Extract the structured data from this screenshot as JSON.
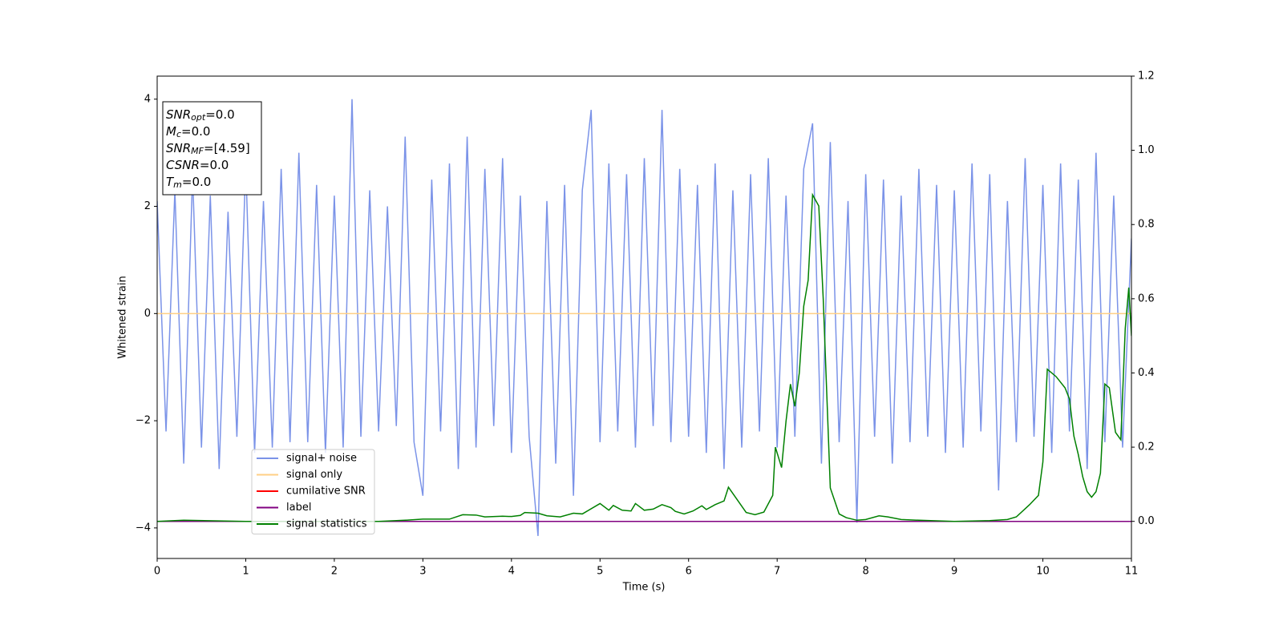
{
  "chart_data": {
    "type": "line",
    "xlabel": "Time (s)",
    "ylabel": "Whitened strain",
    "xlim": [
      0,
      11
    ],
    "xticks": [
      0,
      1,
      2,
      3,
      4,
      5,
      6,
      7,
      8,
      9,
      10,
      11
    ],
    "ylim": [
      -4.57,
      4.43
    ],
    "yticks": [
      {
        "value": -4,
        "label": "−4"
      },
      {
        "value": -2,
        "label": "−2"
      },
      0,
      2,
      4
    ],
    "y2lim": [
      -0.1,
      1.2
    ],
    "y2ticks": [
      {
        "value": 0,
        "label": "0.0"
      },
      {
        "value": 0.2,
        "label": "0.2"
      },
      {
        "value": 0.4,
        "label": "0.4"
      },
      {
        "value": 0.6,
        "label": "0.6"
      },
      {
        "value": 0.8,
        "label": "0.8"
      },
      {
        "value": 1.0,
        "label": "1.0"
      },
      {
        "value": 1.2,
        "label": "1.2"
      }
    ],
    "annotation": [
      {
        "main": "SNR",
        "sub": "opt",
        "text": "=0.0"
      },
      {
        "main": "M",
        "sub": "c",
        "text": "=0.0"
      },
      {
        "main": "SNR",
        "sub": "MF",
        "text": "=[4.59]"
      },
      {
        "main": "CSNR",
        "text": "=0.0"
      },
      {
        "main": "T",
        "sub": "m",
        "text": "=0.0"
      }
    ],
    "legend": "lower left",
    "series": [
      {
        "name": "signal+ noise",
        "color": "#7b93e8",
        "x": [
          0,
          0.1,
          0.2,
          0.3,
          0.4,
          0.5,
          0.6,
          0.7,
          0.8,
          0.9,
          1,
          1.1,
          1.2,
          1.3,
          1.4,
          1.5,
          1.6,
          1.7,
          1.8,
          1.9,
          2,
          2.1,
          2.2,
          2.3,
          2.4,
          2.5,
          2.6,
          2.7,
          2.8,
          2.9,
          3,
          3.1,
          3.2,
          3.3,
          3.4,
          3.5,
          3.6,
          3.7,
          3.8,
          3.9,
          4,
          4.1,
          4.2,
          4.3,
          4.4,
          4.5,
          4.6,
          4.7,
          4.8,
          4.9,
          5,
          5.1,
          5.2,
          5.3,
          5.4,
          5.5,
          5.6,
          5.7,
          5.8,
          5.9,
          6,
          6.1,
          6.2,
          6.3,
          6.4,
          6.5,
          6.6,
          6.7,
          6.8,
          6.9,
          7,
          7.1,
          7.2,
          7.3,
          7.4,
          7.5,
          7.6,
          7.7,
          7.8,
          7.9,
          8,
          8.1,
          8.2,
          8.3,
          8.4,
          8.5,
          8.6,
          8.7,
          8.8,
          8.9,
          9,
          9.1,
          9.2,
          9.3,
          9.4,
          9.5,
          9.6,
          9.7,
          9.8,
          9.9,
          10,
          10.1,
          10.2,
          10.3,
          10.4,
          10.5,
          10.6,
          10.7,
          10.8,
          10.9,
          11
        ],
        "values": [
          2.1,
          -2.2,
          2.3,
          -2.8,
          2.6,
          -2.5,
          2.2,
          -2.9,
          1.9,
          -2.3,
          2.8,
          -2.6,
          2.1,
          -2.5,
          2.7,
          -2.4,
          3.0,
          -2.4,
          2.4,
          -2.6,
          2.2,
          -2.5,
          4.0,
          -2.3,
          2.3,
          -2.2,
          2.0,
          -2.1,
          3.3,
          -2.4,
          -3.4,
          2.5,
          -2.2,
          2.8,
          -2.9,
          3.3,
          -2.5,
          2.7,
          -2.1,
          2.9,
          -2.6,
          2.2,
          -2.3,
          -4.15,
          2.1,
          -2.8,
          2.4,
          -3.4,
          2.3,
          3.8,
          -2.4,
          2.8,
          -2.2,
          2.6,
          -2.5,
          2.9,
          -2.1,
          3.8,
          -2.4,
          2.7,
          -2.3,
          2.4,
          -2.6,
          2.8,
          -2.9,
          2.3,
          -2.5,
          2.6,
          -2.2,
          2.9,
          -2.5,
          2.2,
          -2.3,
          2.7,
          3.55,
          -2.8,
          3.2,
          -2.4,
          2.1,
          -3.9,
          2.6,
          -2.3,
          2.5,
          -2.8,
          2.2,
          -2.4,
          2.7,
          -2.3,
          2.4,
          -2.6,
          2.3,
          -2.5,
          2.8,
          -2.2,
          2.6,
          -3.3,
          2.1,
          -2.4,
          2.9,
          -2.3,
          2.4,
          -2.6,
          2.8,
          -2.2,
          2.5,
          -2.9,
          3.0,
          -2.4,
          2.2,
          -2.5,
          1.4
        ]
      },
      {
        "name": "signal only",
        "color": "#ffcf85",
        "x": [
          0,
          11
        ],
        "values": [
          0,
          0
        ]
      },
      {
        "name": "cumilative SNR",
        "color": "#ff0000",
        "axis": "y2",
        "x": [
          0,
          11
        ],
        "values": [
          0,
          0
        ]
      },
      {
        "name": "label",
        "color": "#800080",
        "axis": "y2",
        "x": [
          0,
          11
        ],
        "values": [
          0,
          0
        ]
      },
      {
        "name": "signal statistics",
        "color": "#008000",
        "axis": "y2",
        "x": [
          0,
          0.3,
          1,
          2,
          2.5,
          2.8,
          3,
          3.3,
          3.45,
          3.6,
          3.7,
          3.9,
          4,
          4.1,
          4.15,
          4.3,
          4.4,
          4.55,
          4.7,
          4.8,
          5,
          5.1,
          5.15,
          5.25,
          5.35,
          5.4,
          5.5,
          5.6,
          5.7,
          5.8,
          5.85,
          5.95,
          6.05,
          6.15,
          6.2,
          6.3,
          6.4,
          6.45,
          6.65,
          6.75,
          6.85,
          6.95,
          6.98,
          7.05,
          7.1,
          7.15,
          7.2,
          7.25,
          7.3,
          7.35,
          7.4,
          7.47,
          7.52,
          7.6,
          7.7,
          7.78,
          7.9,
          8,
          8.15,
          8.25,
          8.4,
          8.6,
          9,
          9.4,
          9.6,
          9.7,
          9.85,
          9.95,
          10,
          10.05,
          10.15,
          10.25,
          10.3,
          10.35,
          10.4,
          10.45,
          10.5,
          10.55,
          10.6,
          10.65,
          10.7,
          10.75,
          10.82,
          10.88,
          10.93,
          10.97,
          11
        ],
        "values": [
          0,
          0.003,
          0,
          0,
          0,
          0.003,
          0.006,
          0.006,
          0.018,
          0.017,
          0.012,
          0.014,
          0.013,
          0.016,
          0.024,
          0.022,
          0.015,
          0.012,
          0.022,
          0.02,
          0.048,
          0.03,
          0.043,
          0.03,
          0.028,
          0.048,
          0.03,
          0.033,
          0.045,
          0.037,
          0.027,
          0.02,
          0.028,
          0.042,
          0.032,
          0.045,
          0.055,
          0.092,
          0.024,
          0.018,
          0.025,
          0.07,
          0.2,
          0.145,
          0.27,
          0.37,
          0.31,
          0.4,
          0.58,
          0.65,
          0.88,
          0.85,
          0.6,
          0.09,
          0.02,
          0.01,
          0.003,
          0.005,
          0.015,
          0.012,
          0.005,
          0.003,
          0,
          0.002,
          0.005,
          0.012,
          0.045,
          0.07,
          0.16,
          0.41,
          0.39,
          0.36,
          0.33,
          0.23,
          0.18,
          0.12,
          0.08,
          0.065,
          0.08,
          0.13,
          0.37,
          0.36,
          0.24,
          0.22,
          0.52,
          0.63,
          0.5
        ]
      }
    ]
  }
}
